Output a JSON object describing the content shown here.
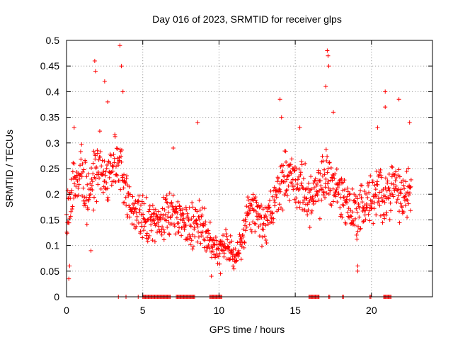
{
  "chart_data": {
    "type": "scatter",
    "title": "Day 016 of 2023, SRMTID for receiver glps",
    "xlabel": "GPS time / hours",
    "ylabel": "SRMTID / TECUs",
    "xlim": [
      0,
      24
    ],
    "ylim": [
      0,
      0.5
    ],
    "x_ticks": [
      0,
      5,
      10,
      15,
      20
    ],
    "x_tick_labels": [
      "0",
      "5",
      "10",
      "15",
      "20"
    ],
    "y_ticks": [
      0,
      0.05,
      0.1,
      0.15,
      0.2,
      0.25,
      0.3,
      0.35,
      0.4,
      0.45,
      0.5
    ],
    "y_tick_labels": [
      "0",
      "0.05",
      "0.1",
      "0.15",
      "0.2",
      "0.25",
      "0.3",
      "0.35",
      "0.4",
      "0.45",
      "0.5"
    ],
    "grid": true,
    "marker": "+",
    "color": "#ff0000",
    "series": [
      {
        "name": "SRMTID",
        "trend": {
          "x": [
            0.0,
            0.3,
            0.6,
            1.0,
            1.4,
            1.8,
            2.2,
            2.6,
            3.0,
            3.4,
            3.8,
            4.2,
            4.6,
            5.0,
            5.5,
            6.0,
            6.5,
            7.0,
            7.5,
            8.0,
            8.5,
            9.0,
            9.5,
            10.0,
            10.5,
            11.0,
            11.5,
            12.0,
            12.5,
            13.0,
            13.5,
            14.0,
            14.5,
            15.0,
            15.5,
            16.0,
            16.5,
            17.0,
            17.5,
            18.0,
            18.5,
            19.0,
            19.5,
            20.0,
            20.5,
            21.0,
            21.5,
            22.0,
            22.6
          ],
          "y": [
            0.15,
            0.2,
            0.24,
            0.25,
            0.18,
            0.24,
            0.27,
            0.22,
            0.25,
            0.26,
            0.22,
            0.18,
            0.16,
            0.15,
            0.14,
            0.15,
            0.16,
            0.18,
            0.15,
            0.13,
            0.15,
            0.14,
            0.1,
            0.09,
            0.1,
            0.08,
            0.1,
            0.18,
            0.15,
            0.14,
            0.17,
            0.22,
            0.24,
            0.22,
            0.21,
            0.19,
            0.2,
            0.24,
            0.22,
            0.2,
            0.18,
            0.16,
            0.18,
            0.19,
            0.2,
            0.2,
            0.22,
            0.19,
            0.21
          ],
          "spread": [
            0.05,
            0.08,
            0.06,
            0.06,
            0.06,
            0.07,
            0.07,
            0.06,
            0.07,
            0.07,
            0.06,
            0.05,
            0.05,
            0.05,
            0.05,
            0.05,
            0.05,
            0.06,
            0.05,
            0.05,
            0.05,
            0.05,
            0.04,
            0.04,
            0.04,
            0.03,
            0.03,
            0.05,
            0.05,
            0.05,
            0.05,
            0.06,
            0.06,
            0.06,
            0.06,
            0.06,
            0.06,
            0.07,
            0.06,
            0.06,
            0.06,
            0.06,
            0.06,
            0.06,
            0.06,
            0.06,
            0.06,
            0.06,
            0.06
          ]
        },
        "sample_count": 1100,
        "peaks": [
          {
            "x": 0.15,
            "y": 0.035
          },
          {
            "x": 0.2,
            "y": 0.06
          },
          {
            "x": 0.5,
            "y": 0.33
          },
          {
            "x": 1.6,
            "y": 0.09
          },
          {
            "x": 1.85,
            "y": 0.46
          },
          {
            "x": 1.9,
            "y": 0.44
          },
          {
            "x": 2.5,
            "y": 0.42
          },
          {
            "x": 2.7,
            "y": 0.38
          },
          {
            "x": 3.5,
            "y": 0.49
          },
          {
            "x": 3.6,
            "y": 0.45
          },
          {
            "x": 3.7,
            "y": 0.4
          },
          {
            "x": 7.0,
            "y": 0.29
          },
          {
            "x": 8.6,
            "y": 0.34
          },
          {
            "x": 9.5,
            "y": 0.04
          },
          {
            "x": 10.1,
            "y": 0.045
          },
          {
            "x": 14.0,
            "y": 0.385
          },
          {
            "x": 14.1,
            "y": 0.35
          },
          {
            "x": 15.3,
            "y": 0.33
          },
          {
            "x": 17.1,
            "y": 0.48
          },
          {
            "x": 17.15,
            "y": 0.47
          },
          {
            "x": 17.2,
            "y": 0.45
          },
          {
            "x": 17.0,
            "y": 0.41
          },
          {
            "x": 17.5,
            "y": 0.36
          },
          {
            "x": 19.1,
            "y": 0.05
          },
          {
            "x": 19.1,
            "y": 0.06
          },
          {
            "x": 20.9,
            "y": 0.4
          },
          {
            "x": 20.9,
            "y": 0.37
          },
          {
            "x": 21.8,
            "y": 0.385
          },
          {
            "x": 22.5,
            "y": 0.34
          },
          {
            "x": 20.4,
            "y": 0.33
          }
        ],
        "zero_segments": [
          [
            3.4,
            3.45
          ],
          [
            3.9,
            3.95
          ],
          [
            4.7,
            4.75
          ],
          [
            5.0,
            6.8
          ],
          [
            7.2,
            8.4
          ],
          [
            9.4,
            10.2
          ],
          [
            15.9,
            16.6
          ],
          [
            17.2,
            17.3
          ],
          [
            18.1,
            18.2
          ],
          [
            19.9,
            20.0
          ],
          [
            20.8,
            21.3
          ]
        ]
      }
    ]
  }
}
